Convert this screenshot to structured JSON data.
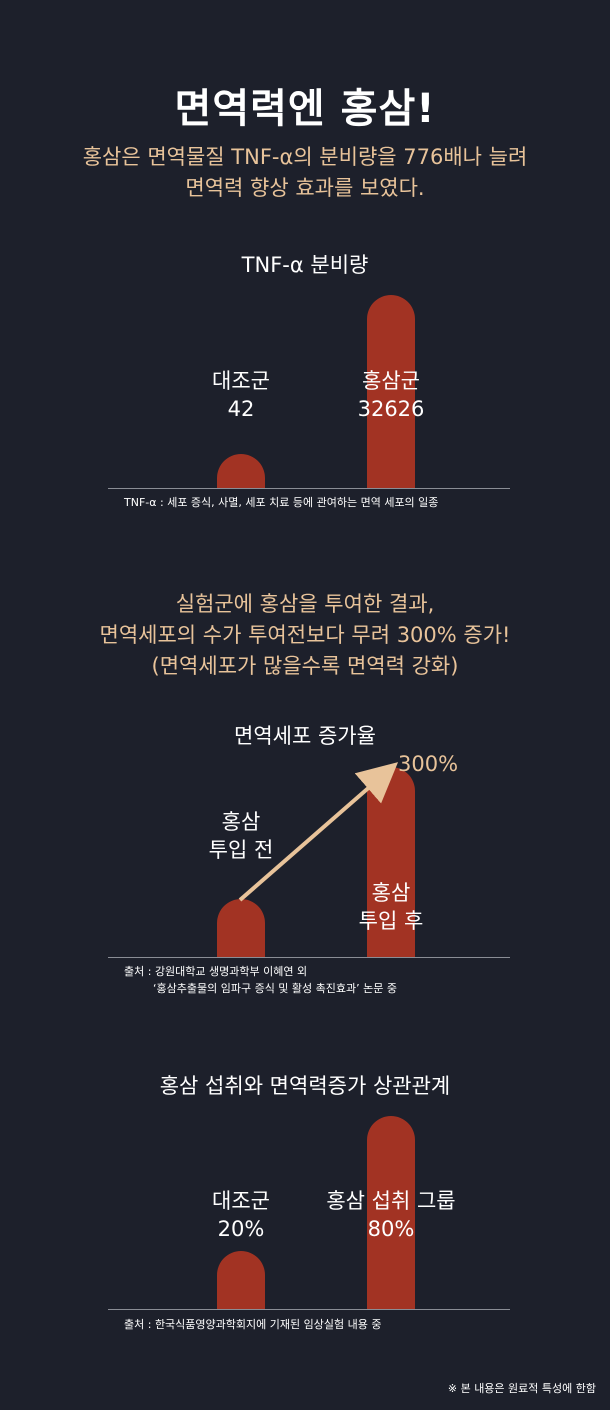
{
  "title": "면역력엔 홍삼!",
  "section1": {
    "lines": [
      "홍삼은 면역물질 TNF-α의 분비량을 776배나 늘려",
      "면역력 향상 효과를 보였다."
    ]
  },
  "section2": {
    "lines": [
      "실험군에 홍삼을 투여한 결과,",
      "면역세포의 수가 투여전보다 무려 300% 증가!",
      "(면역세포가 많을수록 면역력 강화)"
    ]
  },
  "footer": "※ 본 내용은 원료적 특성에 한함",
  "chart_data": [
    {
      "type": "bar",
      "title": "TNF-α 분비량",
      "categories": [
        "대조군",
        "홍삼군"
      ],
      "values": [
        42,
        32626
      ],
      "value_labels": [
        "42",
        "32626"
      ],
      "note_lines": [
        "TNF-α : 세포 증식, 사멸, 세포 치료 등에 관여하는 면역 세포의 일종"
      ],
      "bar_color": "#a23323"
    },
    {
      "type": "bar",
      "title": "면역세포 증가율",
      "categories": [
        "홍삼 투입 전",
        "홍삼 투입 후"
      ],
      "category_lines": [
        [
          "홍삼",
          "투입 전"
        ],
        [
          "홍삼",
          "투입 후"
        ]
      ],
      "values": [
        100,
        400
      ],
      "annotation": "300%",
      "note_lines": [
        "출처 : 강원대학교 생명과학부 이혜연 외",
        "‘홍삼추출물의 임파구 증식 및 활성 촉진효과’ 논문 중"
      ],
      "bar_color": "#a23323",
      "arrow_color": "#e8c39a"
    },
    {
      "type": "bar",
      "title": "홍삼 섭취와 면역력증가 상관관계",
      "categories": [
        "대조군",
        "홍삼 섭취 그룹"
      ],
      "values": [
        20,
        80
      ],
      "value_labels": [
        "20%",
        "80%"
      ],
      "note_lines": [
        "출처 : 한국식품영양과학회지에 기재된 임상실험 내용 중"
      ],
      "bar_color": "#a23323"
    }
  ]
}
